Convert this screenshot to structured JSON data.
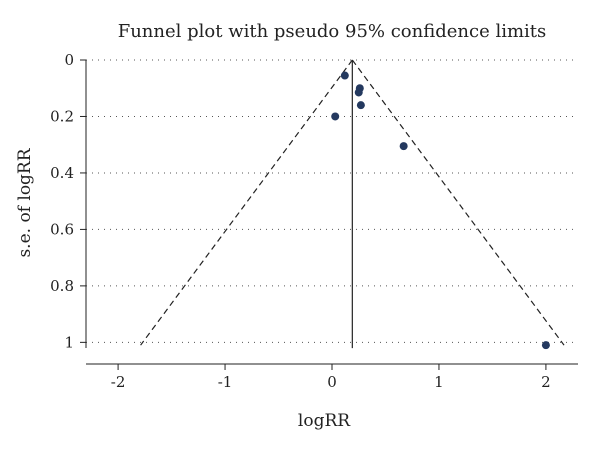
{
  "chart_data": {
    "type": "scatter",
    "title": "Funnel plot with pseudo 95% confidence limits",
    "xlabel": "logRR",
    "ylabel": "s.e. of logRR",
    "xlim": [
      -2.3,
      2.3
    ],
    "ylim": [
      1.02,
      0.0
    ],
    "y_reversed": true,
    "x_ticks": [
      "-2",
      "-1",
      "0",
      "1",
      "2"
    ],
    "y_ticks": [
      "0",
      "0.2",
      "0.4",
      "0.6",
      "0.8",
      "1"
    ],
    "grid": "horizontal dotted",
    "points": [
      {
        "x": 0.12,
        "y": 0.055
      },
      {
        "x": 0.26,
        "y": 0.1
      },
      {
        "x": 0.25,
        "y": 0.115
      },
      {
        "x": 0.27,
        "y": 0.16
      },
      {
        "x": 0.03,
        "y": 0.2
      },
      {
        "x": 0.67,
        "y": 0.305
      },
      {
        "x": 2.0,
        "y": 1.01
      }
    ],
    "pooled_estimate": 0.19,
    "confidence_level": 0.95,
    "funnel_bottom_se": 1.01,
    "point_color": "#24395f",
    "line_color": "#222222"
  }
}
